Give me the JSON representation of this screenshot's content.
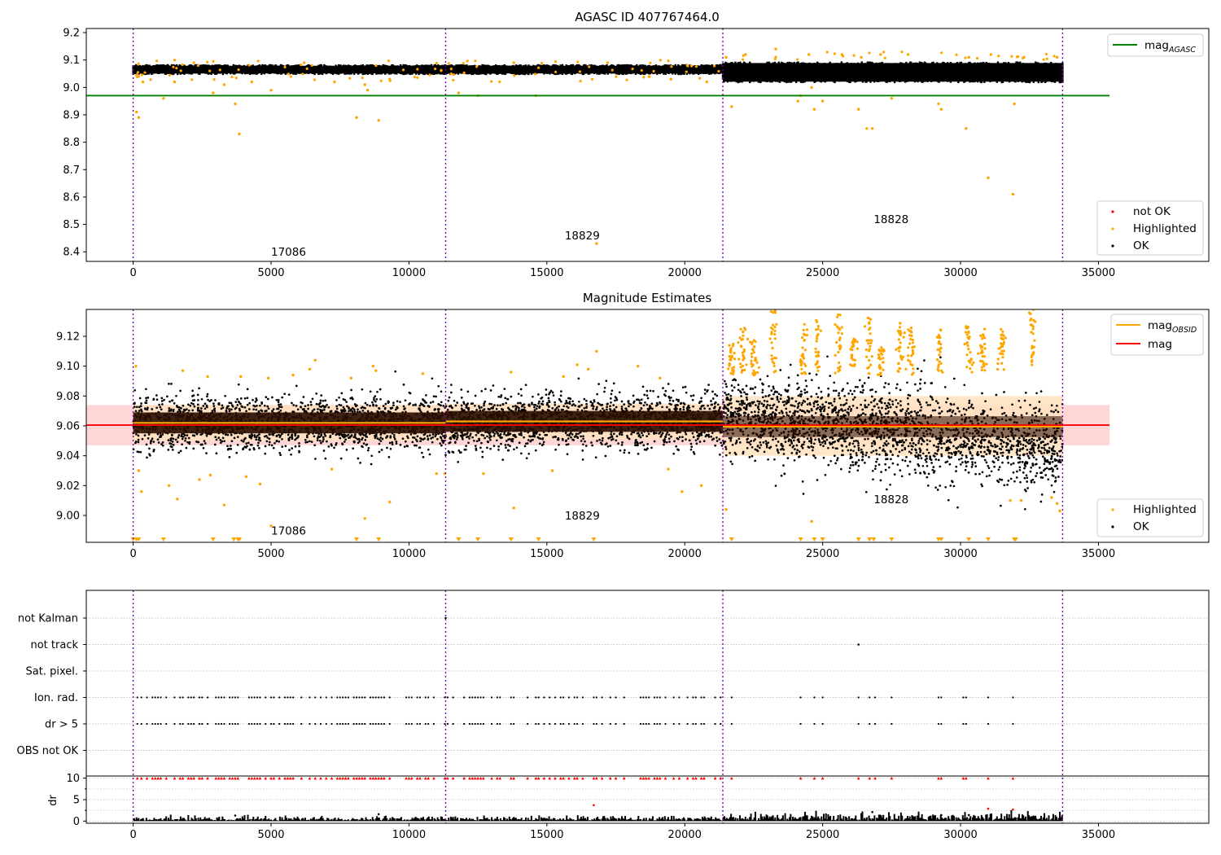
{
  "chart_data": [
    {
      "type": "scatter",
      "title": "AGASC ID 407767464.0",
      "xlim": [
        -1700,
        39000
      ],
      "ylim": [
        8.365,
        9.215
      ],
      "x_ticks": [
        0,
        5000,
        10000,
        15000,
        20000,
        25000,
        30000,
        35000
      ],
      "y_ticks": [
        8.4,
        8.5,
        8.6,
        8.7,
        8.8,
        8.9,
        9.0,
        9.1,
        9.2
      ],
      "x_ticks_text": [
        "0",
        "5000",
        "10000",
        "15000",
        "20000",
        "25000",
        "30000",
        "35000"
      ],
      "y_ticks_text": [
        "8.4",
        "8.5",
        "8.6",
        "8.7",
        "8.8",
        "8.9",
        "9.0",
        "9.1",
        "9.2"
      ],
      "obsid_boundaries": [
        0,
        11330,
        21380,
        33700
      ],
      "obsid_labels": [
        {
          "text": "17086",
          "x": 5000,
          "y": 8.4
        },
        {
          "text": "18829",
          "x": 15650,
          "y": 8.46
        },
        {
          "text": "18828",
          "x": 26850,
          "y": 8.52
        }
      ],
      "mag_agasc": 8.97,
      "mag_agasc_xrange": [
        -1700,
        35400
      ],
      "ok_band": [
        {
          "x0": 0,
          "x1": 11330,
          "lo": 9.045,
          "hi": 9.085
        },
        {
          "x0": 11330,
          "x1": 21380,
          "lo": 9.045,
          "hi": 9.085
        },
        {
          "x0": 21380,
          "x1": 33700,
          "lo": 9.015,
          "hi": 9.095
        }
      ],
      "highlighted_points": [
        [
          120,
          8.91
        ],
        [
          200,
          8.89
        ],
        [
          350,
          9.02
        ],
        [
          1100,
          8.96
        ],
        [
          1500,
          9.02
        ],
        [
          2200,
          9.09
        ],
        [
          2900,
          8.98
        ],
        [
          3300,
          9.01
        ],
        [
          3700,
          8.94
        ],
        [
          3850,
          8.83
        ],
        [
          4300,
          9.02
        ],
        [
          5000,
          8.99
        ],
        [
          6200,
          9.09
        ],
        [
          7300,
          9.02
        ],
        [
          8100,
          8.89
        ],
        [
          8400,
          9.01
        ],
        [
          8500,
          8.99
        ],
        [
          8900,
          8.88
        ],
        [
          9300,
          9.03
        ],
        [
          11800,
          8.98
        ],
        [
          12500,
          8.97
        ],
        [
          13800,
          9.09
        ],
        [
          14600,
          8.97
        ],
        [
          16800,
          8.43
        ],
        [
          17200,
          9.09
        ],
        [
          19500,
          9.03
        ],
        [
          20800,
          9.02
        ],
        [
          21700,
          8.93
        ],
        [
          21500,
          9.11
        ],
        [
          22200,
          9.12
        ],
        [
          23300,
          9.14
        ],
        [
          24100,
          8.95
        ],
        [
          24200,
          8.97
        ],
        [
          24500,
          9.12
        ],
        [
          24600,
          9.0
        ],
        [
          24700,
          8.92
        ],
        [
          25000,
          8.95
        ],
        [
          25700,
          9.12
        ],
        [
          26300,
          8.92
        ],
        [
          26400,
          9.11
        ],
        [
          26600,
          8.85
        ],
        [
          26800,
          8.85
        ],
        [
          27100,
          9.12
        ],
        [
          27500,
          8.96
        ],
        [
          28100,
          9.12
        ],
        [
          29200,
          8.94
        ],
        [
          29300,
          8.92
        ],
        [
          30200,
          8.85
        ],
        [
          30300,
          9.11
        ],
        [
          31000,
          8.67
        ],
        [
          31100,
          9.12
        ],
        [
          31900,
          8.61
        ],
        [
          31950,
          8.94
        ],
        [
          32300,
          9.11
        ],
        [
          33500,
          9.11
        ]
      ],
      "not_ok_points": [],
      "legend": [
        {
          "label": "mag",
          "sub": "AGASC",
          "color": "#008000"
        },
        {
          "label": "not OK",
          "color": "#ff0000"
        },
        {
          "label": "Highlighted",
          "color": "#ffa500"
        },
        {
          "label": "OK",
          "color": "#000000"
        }
      ]
    },
    {
      "type": "scatter",
      "title": "Magnitude Estimates",
      "xlim": [
        -1700,
        39000
      ],
      "ylim": [
        8.982,
        9.138
      ],
      "x_ticks": [
        0,
        5000,
        10000,
        15000,
        20000,
        25000,
        30000,
        35000
      ],
      "y_ticks": [
        9.0,
        9.02,
        9.04,
        9.06,
        9.08,
        9.1,
        9.12
      ],
      "x_ticks_text": [
        "0",
        "5000",
        "10000",
        "15000",
        "20000",
        "25000",
        "30000",
        "35000"
      ],
      "y_ticks_text": [
        "9.00",
        "9.02",
        "9.04",
        "9.06",
        "9.08",
        "9.10",
        "9.12"
      ],
      "obsid_boundaries": [
        0,
        11330,
        21380,
        33700
      ],
      "obsid_labels": [
        {
          "text": "17086",
          "x": 5000,
          "y": 8.99
        },
        {
          "text": "18829",
          "x": 15650,
          "y": 9.0
        },
        {
          "text": "18828",
          "x": 26850,
          "y": 9.011
        }
      ],
      "mag": 9.0605,
      "mag_err_band": [
        9.047,
        9.074
      ],
      "mag_xrange": [
        -1700,
        35400
      ],
      "mag_obsid": [
        {
          "x0": 0,
          "x1": 11330,
          "value": 9.062,
          "lo": 9.05,
          "hi": 9.074
        },
        {
          "x0": 11330,
          "x1": 21380,
          "value": 9.063,
          "lo": 9.051,
          "hi": 9.075
        },
        {
          "x0": 21380,
          "x1": 33700,
          "value": 9.0595,
          "lo": 9.04,
          "hi": 9.08
        }
      ],
      "off_scale_low_x": [
        0,
        120,
        200,
        1100,
        2900,
        3650,
        3800,
        3850,
        8100,
        8900,
        11800,
        12500,
        13700,
        14700,
        16700,
        21700,
        24200,
        24700,
        25000,
        26300,
        26700,
        26850,
        27500,
        29200,
        29300,
        30300,
        31000,
        31950,
        32000
      ],
      "highlight_columns": [
        {
          "x": 21700,
          "lo": 9.094,
          "hi": 9.115
        },
        {
          "x": 22100,
          "lo": 9.095,
          "hi": 9.127
        },
        {
          "x": 22500,
          "lo": 9.094,
          "hi": 9.118
        },
        {
          "x": 23200,
          "lo": 9.096,
          "hi": 9.138
        },
        {
          "x": 24300,
          "lo": 9.093,
          "hi": 9.129
        },
        {
          "x": 24800,
          "lo": 9.095,
          "hi": 9.131
        },
        {
          "x": 25600,
          "lo": 9.094,
          "hi": 9.138
        },
        {
          "x": 26100,
          "lo": 9.1,
          "hi": 9.119
        },
        {
          "x": 26700,
          "lo": 9.093,
          "hi": 9.134
        },
        {
          "x": 27100,
          "lo": 9.094,
          "hi": 9.113
        },
        {
          "x": 27800,
          "lo": 9.095,
          "hi": 9.129
        },
        {
          "x": 28200,
          "lo": 9.094,
          "hi": 9.127
        },
        {
          "x": 29200,
          "lo": 9.095,
          "hi": 9.125
        },
        {
          "x": 30300,
          "lo": 9.096,
          "hi": 9.128
        },
        {
          "x": 30800,
          "lo": 9.095,
          "hi": 9.126
        },
        {
          "x": 31500,
          "lo": 9.097,
          "hi": 9.125
        },
        {
          "x": 32600,
          "lo": 9.1,
          "hi": 9.138
        }
      ],
      "highlighted_points": [
        [
          100,
          9.1
        ],
        [
          1800,
          9.097
        ],
        [
          2700,
          9.093
        ],
        [
          3900,
          9.093
        ],
        [
          4900,
          9.092
        ],
        [
          5800,
          9.094
        ],
        [
          6400,
          9.098
        ],
        [
          6600,
          9.104
        ],
        [
          7900,
          9.092
        ],
        [
          8700,
          9.1
        ],
        [
          8800,
          9.097
        ],
        [
          10500,
          9.095
        ],
        [
          13700,
          9.096
        ],
        [
          15600,
          9.093
        ],
        [
          16100,
          9.101
        ],
        [
          16500,
          9.098
        ],
        [
          16800,
          9.11
        ],
        [
          18300,
          9.1
        ],
        [
          19100,
          9.092
        ],
        [
          200,
          9.03
        ],
        [
          300,
          9.016
        ],
        [
          1300,
          9.02
        ],
        [
          1600,
          9.011
        ],
        [
          2400,
          9.024
        ],
        [
          2800,
          9.027
        ],
        [
          3300,
          9.007
        ],
        [
          4100,
          9.026
        ],
        [
          4600,
          9.021
        ],
        [
          5000,
          8.993
        ],
        [
          7200,
          9.031
        ],
        [
          8400,
          8.998
        ],
        [
          9300,
          9.009
        ],
        [
          11000,
          9.028
        ],
        [
          11300,
          9.028
        ],
        [
          12700,
          9.028
        ],
        [
          13800,
          9.005
        ],
        [
          15200,
          9.03
        ],
        [
          19400,
          9.031
        ],
        [
          19900,
          9.016
        ],
        [
          20600,
          9.02
        ],
        [
          21500,
          9.004
        ],
        [
          24600,
          8.996
        ],
        [
          31800,
          9.01
        ],
        [
          32200,
          9.01
        ],
        [
          33300,
          9.012
        ],
        [
          33500,
          9.008
        ],
        [
          33600,
          9.003
        ]
      ],
      "legend": [
        {
          "label": "mag",
          "sub": "OBSID",
          "color": "#ffa500"
        },
        {
          "label": "mag",
          "color": "#ff0000"
        },
        {
          "label": "Highlighted",
          "color": "#ffa500"
        },
        {
          "label": "OK",
          "color": "#000000"
        }
      ]
    },
    {
      "type": "scatter",
      "title": "",
      "xlim": [
        -1700,
        39000
      ],
      "category_rows": [
        {
          "label": "not Kalman",
          "points": [
            11330
          ]
        },
        {
          "label": "not track",
          "points": [
            26300
          ]
        },
        {
          "label": "Sat. pixel.",
          "points": []
        },
        {
          "label": "Ion. rad.",
          "bursts": true
        },
        {
          "label": "dr > 5",
          "bursts": true
        },
        {
          "label": "OBS not OK",
          "points": []
        }
      ],
      "burst_x": [
        150,
        300,
        500,
        700,
        800,
        900,
        1000,
        1200,
        1500,
        1700,
        1800,
        2000,
        2100,
        2200,
        2400,
        2500,
        2700,
        3000,
        3100,
        3200,
        3300,
        3500,
        3600,
        3700,
        3800,
        4200,
        4300,
        4400,
        4500,
        4600,
        4800,
        5000,
        5100,
        5300,
        5500,
        5600,
        5700,
        5800,
        6100,
        6400,
        6600,
        6800,
        7000,
        7200,
        7400,
        7500,
        7600,
        7700,
        7800,
        8000,
        8100,
        8200,
        8300,
        8400,
        8600,
        8700,
        8800,
        8900,
        9000,
        9100,
        9300,
        9900,
        10000,
        10100,
        10300,
        10400,
        10600,
        10700,
        10900,
        11300,
        11400,
        11600,
        12000,
        12200,
        12300,
        12400,
        12500,
        12600,
        12700,
        13000,
        13200,
        13300,
        13700,
        13800,
        14300,
        14600,
        14700,
        14900,
        15100,
        15300,
        15500,
        15600,
        15800,
        16000,
        16100,
        16300,
        16700,
        16800,
        17000,
        17300,
        17500,
        17800,
        18400,
        18500,
        18600,
        18700,
        18900,
        19000,
        19100,
        19300,
        19600,
        19800,
        20100,
        20300,
        20400,
        20600,
        20700,
        21100,
        21300,
        21700,
        24200,
        24700,
        25000,
        26300,
        26700,
        26900,
        27500,
        29200,
        29300,
        30100,
        30200,
        31000,
        31900
      ],
      "dr_ylim": [
        -0.5,
        10.5
      ],
      "dr_ticks": [
        0,
        5,
        10
      ],
      "dr_ticks_text": [
        "0",
        "5",
        "10"
      ],
      "dr_ylabel": "dr",
      "dr_outliers": [
        [
          3700,
          1.3
        ],
        [
          8900,
          1.6
        ],
        [
          16700,
          3.7
        ],
        [
          26800,
          2.1
        ],
        [
          29300,
          1.4
        ],
        [
          30300,
          1.4
        ],
        [
          31000,
          2.9
        ],
        [
          31900,
          2.7
        ]
      ],
      "x_ticks": [
        0,
        5000,
        10000,
        15000,
        20000,
        25000,
        30000,
        35000
      ],
      "x_ticks_text": [
        "0",
        "5000",
        "10000",
        "15000",
        "20000",
        "25000",
        "30000",
        "35000"
      ],
      "obsid_boundaries": [
        0,
        11330,
        21380,
        33700
      ]
    }
  ]
}
